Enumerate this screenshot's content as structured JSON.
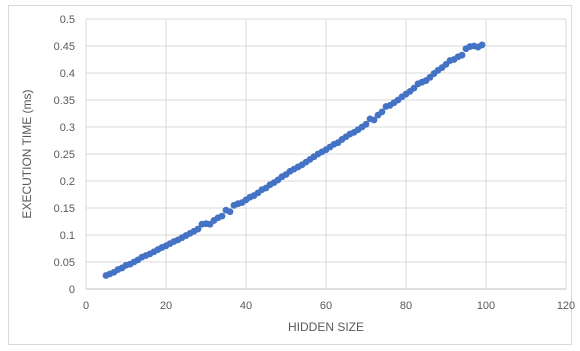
{
  "chart_data": {
    "type": "scatter",
    "title": "",
    "xlabel": "HIDDEN SIZE",
    "ylabel": "EXECUTION TIME (ms)",
    "xlim": [
      0,
      120
    ],
    "ylim": [
      0,
      0.5
    ],
    "xticks": [
      0,
      20,
      40,
      60,
      80,
      100,
      120
    ],
    "yticks": [
      0,
      0.05,
      0.1,
      0.15,
      0.2,
      0.25,
      0.3,
      0.35,
      0.4,
      0.45,
      0.5
    ],
    "grid": true,
    "legend": "none",
    "series_color": "#4472c4",
    "series": [
      {
        "x": [
          5,
          6,
          7,
          8,
          9,
          10,
          11,
          12,
          13,
          14,
          15,
          16,
          17,
          18,
          19,
          20,
          21,
          22,
          23,
          24,
          25,
          26,
          27,
          28,
          29,
          30,
          31,
          32,
          33,
          34,
          35,
          36,
          37,
          38,
          39,
          40,
          41,
          42,
          43,
          44,
          45,
          46,
          47,
          48,
          49,
          50,
          51,
          52,
          53,
          54,
          55,
          56,
          57,
          58,
          59,
          60,
          61,
          62,
          63,
          64,
          65,
          66,
          67,
          68,
          69,
          70,
          71,
          72,
          73,
          74,
          75,
          76,
          77,
          78,
          79,
          80,
          81,
          82,
          83,
          84,
          85,
          86,
          87,
          88,
          89,
          90,
          91,
          92,
          93,
          94,
          95,
          96,
          97,
          98,
          99
        ],
        "y": [
          0.025,
          0.028,
          0.031,
          0.036,
          0.039,
          0.044,
          0.046,
          0.05,
          0.054,
          0.059,
          0.062,
          0.065,
          0.069,
          0.073,
          0.077,
          0.08,
          0.084,
          0.088,
          0.091,
          0.095,
          0.099,
          0.103,
          0.107,
          0.111,
          0.12,
          0.121,
          0.12,
          0.127,
          0.132,
          0.135,
          0.146,
          0.143,
          0.155,
          0.158,
          0.16,
          0.165,
          0.17,
          0.173,
          0.178,
          0.184,
          0.187,
          0.193,
          0.197,
          0.202,
          0.208,
          0.212,
          0.218,
          0.222,
          0.226,
          0.23,
          0.235,
          0.24,
          0.245,
          0.25,
          0.254,
          0.258,
          0.263,
          0.268,
          0.271,
          0.277,
          0.282,
          0.287,
          0.29,
          0.295,
          0.3,
          0.305,
          0.315,
          0.313,
          0.322,
          0.328,
          0.338,
          0.34,
          0.345,
          0.35,
          0.356,
          0.361,
          0.366,
          0.372,
          0.38,
          0.383,
          0.386,
          0.392,
          0.399,
          0.405,
          0.41,
          0.416,
          0.423,
          0.425,
          0.43,
          0.433,
          0.445,
          0.449,
          0.45,
          0.448,
          0.452
        ]
      }
    ]
  }
}
